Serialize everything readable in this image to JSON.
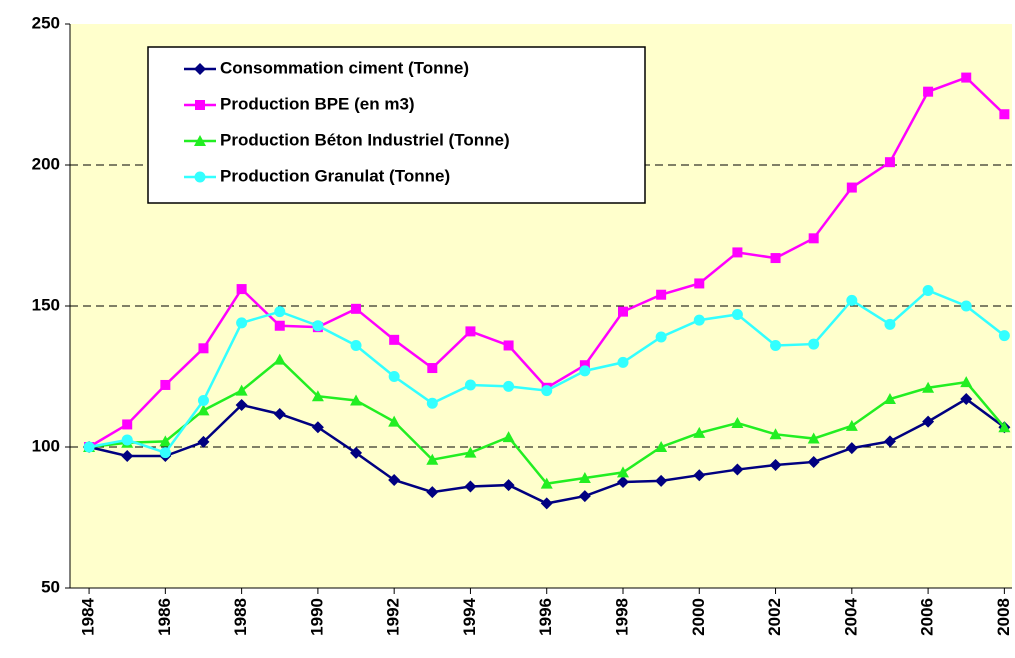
{
  "chart_data": {
    "type": "line",
    "x": [
      1984,
      1985,
      1986,
      1987,
      1988,
      1989,
      1990,
      1991,
      1992,
      1993,
      1994,
      1995,
      1996,
      1997,
      1998,
      1999,
      2000,
      2001,
      2002,
      2003,
      2004,
      2005,
      2006,
      2007,
      2008
    ],
    "series": [
      {
        "name": "Consommation ciment (Tonne)",
        "color": "#000080",
        "marker": "diamond",
        "values": [
          100,
          96.8,
          96.8,
          101.8,
          114.9,
          111.7,
          107,
          97.9,
          88.3,
          84,
          86,
          86.5,
          80,
          82.6,
          87.6,
          88,
          90,
          92,
          93.6,
          94.7,
          99.6,
          102,
          109,
          117,
          107
        ]
      },
      {
        "name": "Production BPE (en m3)",
        "color": "#ff00ff",
        "marker": "square",
        "values": [
          100,
          108,
          122,
          135,
          156,
          143,
          142.5,
          149,
          138,
          128,
          141,
          136,
          121,
          129,
          148,
          154,
          158,
          169,
          167,
          174,
          192,
          201,
          226,
          231,
          218
        ]
      },
      {
        "name": "Production Béton Industriel (Tonne)",
        "color": "#22ee22",
        "marker": "triangle",
        "values": [
          100,
          101.5,
          102,
          113,
          120,
          131,
          118,
          116.5,
          109,
          95.5,
          98,
          103.5,
          87,
          89,
          91,
          100,
          105,
          108.5,
          104.5,
          103,
          107.5,
          117,
          121,
          123,
          107
        ]
      },
      {
        "name": "Production Granulat (Tonne)",
        "color": "#33ffff",
        "marker": "circle",
        "values": [
          100,
          102.5,
          98,
          116.5,
          144,
          148,
          143,
          136,
          125,
          115.5,
          122,
          121.5,
          120,
          127,
          130,
          139,
          145,
          147,
          136,
          136.5,
          152,
          143.5,
          155.5,
          150,
          139.5
        ]
      }
    ],
    "xlim": [
      1983.5,
      2008.2
    ],
    "xticks": [
      1984,
      1986,
      1988,
      1990,
      1992,
      1994,
      1996,
      1998,
      2000,
      2002,
      2004,
      2006,
      2008
    ],
    "ylim": [
      50,
      250
    ],
    "yticks": [
      50,
      100,
      150,
      200,
      250
    ],
    "grid": true,
    "legend": "upper left",
    "background": "#ffffcc"
  }
}
